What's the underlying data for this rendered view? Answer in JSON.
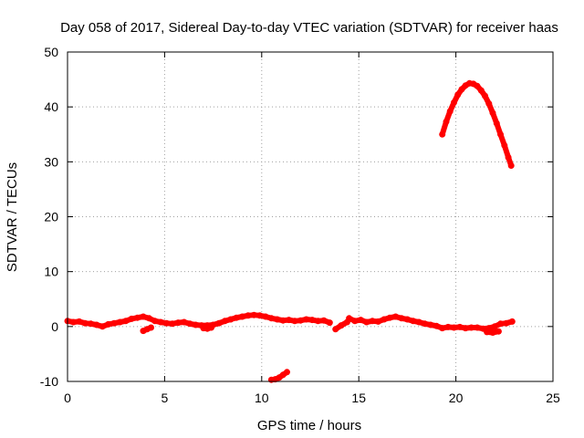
{
  "chart_data": {
    "type": "scatter",
    "title": "Day 058 of 2017, Sidereal Day-to-day VTEC variation (SDTVAR) for receiver haas",
    "xlabel": "GPS time / hours",
    "ylabel": "SDTVAR / TECUs",
    "xlim": [
      0,
      25
    ],
    "ylim": [
      -10,
      50
    ],
    "x_ticks": [
      0,
      5,
      10,
      15,
      20,
      25
    ],
    "y_ticks": [
      -10,
      0,
      10,
      20,
      30,
      40,
      50
    ],
    "grid": true,
    "series_color": "#ff0000",
    "series": [
      {
        "name": "main",
        "points": [
          [
            0.0,
            1.0
          ],
          [
            0.3,
            0.8
          ],
          [
            0.6,
            0.9
          ],
          [
            0.9,
            0.6
          ],
          [
            1.2,
            0.5
          ],
          [
            1.5,
            0.3
          ],
          [
            1.8,
            0.0
          ],
          [
            2.1,
            0.4
          ],
          [
            2.4,
            0.6
          ],
          [
            2.7,
            0.8
          ],
          [
            3.0,
            1.0
          ],
          [
            3.3,
            1.4
          ],
          [
            3.6,
            1.6
          ],
          [
            3.9,
            1.8
          ],
          [
            4.2,
            1.5
          ],
          [
            4.5,
            1.0
          ],
          [
            4.8,
            0.8
          ],
          [
            5.1,
            0.6
          ],
          [
            5.4,
            0.5
          ],
          [
            5.7,
            0.7
          ],
          [
            6.0,
            0.8
          ],
          [
            6.3,
            0.5
          ],
          [
            6.6,
            0.3
          ],
          [
            6.9,
            0.2
          ],
          [
            7.2,
            0.2
          ],
          [
            7.5,
            0.3
          ],
          [
            7.8,
            0.6
          ],
          [
            8.1,
            1.0
          ],
          [
            8.4,
            1.3
          ],
          [
            8.7,
            1.6
          ],
          [
            9.0,
            1.8
          ],
          [
            9.3,
            2.0
          ],
          [
            9.6,
            2.1
          ],
          [
            9.9,
            2.0
          ],
          [
            10.2,
            1.8
          ],
          [
            10.5,
            1.5
          ],
          [
            10.8,
            1.3
          ],
          [
            11.1,
            1.1
          ],
          [
            11.4,
            1.2
          ],
          [
            11.7,
            1.0
          ],
          [
            12.0,
            1.1
          ],
          [
            12.3,
            1.3
          ],
          [
            12.6,
            1.2
          ],
          [
            12.9,
            1.0
          ],
          [
            13.2,
            1.1
          ],
          [
            13.5,
            0.7
          ]
        ]
      },
      {
        "name": "dip-1",
        "points": [
          [
            3.9,
            -0.8
          ],
          [
            4.1,
            -0.5
          ],
          [
            4.3,
            -0.2
          ]
        ]
      },
      {
        "name": "dip-2",
        "points": [
          [
            7.0,
            -0.3
          ],
          [
            7.2,
            -0.4
          ],
          [
            7.4,
            -0.2
          ]
        ]
      },
      {
        "name": "segment-2",
        "points": [
          [
            14.5,
            1.5
          ],
          [
            14.8,
            1.0
          ],
          [
            15.1,
            1.2
          ],
          [
            15.4,
            0.8
          ],
          [
            15.7,
            1.0
          ],
          [
            16.0,
            0.9
          ],
          [
            16.3,
            1.3
          ],
          [
            16.6,
            1.6
          ],
          [
            16.9,
            1.8
          ],
          [
            17.2,
            1.5
          ],
          [
            17.5,
            1.3
          ],
          [
            17.8,
            1.0
          ],
          [
            18.1,
            0.8
          ],
          [
            18.4,
            0.5
          ],
          [
            18.7,
            0.3
          ],
          [
            19.0,
            0.1
          ],
          [
            19.3,
            -0.3
          ],
          [
            19.6,
            -0.1
          ],
          [
            19.9,
            -0.2
          ],
          [
            20.2,
            -0.1
          ],
          [
            20.5,
            -0.3
          ],
          [
            20.8,
            -0.2
          ],
          [
            21.1,
            -0.2
          ],
          [
            21.4,
            -0.4
          ],
          [
            21.7,
            -0.3
          ],
          [
            22.0,
            0.0
          ],
          [
            22.3,
            0.5
          ],
          [
            22.6,
            0.6
          ],
          [
            22.9,
            0.9
          ]
        ]
      },
      {
        "name": "segment-2-dip",
        "points": [
          [
            21.6,
            -1.0
          ],
          [
            21.9,
            -1.1
          ],
          [
            22.2,
            -0.9
          ]
        ]
      },
      {
        "name": "gap-fragment",
        "points": [
          [
            13.8,
            -0.5
          ],
          [
            14.1,
            0.2
          ],
          [
            14.4,
            0.8
          ]
        ]
      },
      {
        "name": "low-segment",
        "points": [
          [
            10.5,
            -9.7
          ],
          [
            10.7,
            -9.6
          ],
          [
            10.9,
            -9.3
          ],
          [
            11.1,
            -8.8
          ],
          [
            11.3,
            -8.3
          ]
        ]
      },
      {
        "name": "arc",
        "points": [
          [
            19.3,
            35.0
          ],
          [
            19.5,
            37.3
          ],
          [
            19.7,
            39.2
          ],
          [
            19.9,
            40.8
          ],
          [
            20.1,
            42.2
          ],
          [
            20.3,
            43.2
          ],
          [
            20.5,
            43.9
          ],
          [
            20.7,
            44.3
          ],
          [
            20.9,
            44.2
          ],
          [
            21.1,
            43.8
          ],
          [
            21.3,
            43.0
          ],
          [
            21.5,
            42.0
          ],
          [
            21.7,
            40.6
          ],
          [
            21.9,
            38.9
          ],
          [
            22.1,
            37.0
          ],
          [
            22.3,
            35.0
          ],
          [
            22.5,
            33.0
          ],
          [
            22.7,
            30.8
          ],
          [
            22.85,
            29.3
          ]
        ]
      }
    ]
  }
}
